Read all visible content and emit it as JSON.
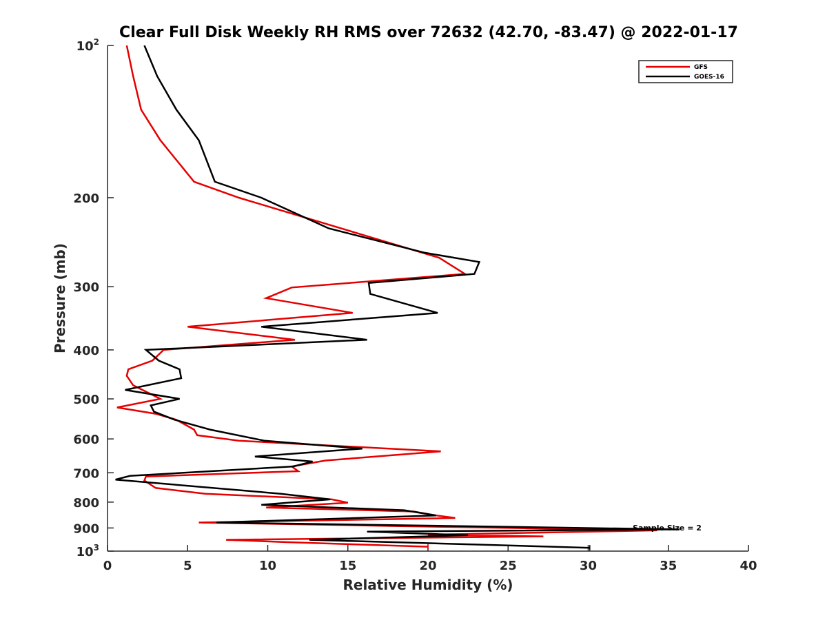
{
  "chart_data": {
    "type": "line",
    "title": "Clear Full Disk Weekly RH RMS over 72632 (42.70, -83.47) @ 2022-01-17",
    "xlabel": "Relative Humidity (%)",
    "ylabel": "Pressure (mb)",
    "xlim": [
      0,
      40
    ],
    "ylim": [
      100,
      1000
    ],
    "y_scale": "log",
    "y_reversed": true,
    "x_ticks": [
      "0",
      "5",
      "10",
      "15",
      "20",
      "25",
      "30",
      "35",
      "40"
    ],
    "y_ticks": [
      {
        "value": 100,
        "base": "10",
        "exp": "2"
      },
      {
        "value": 200,
        "label": "200"
      },
      {
        "value": 300,
        "label": "300"
      },
      {
        "value": 400,
        "label": "400"
      },
      {
        "value": 500,
        "label": "500"
      },
      {
        "value": 600,
        "label": "600"
      },
      {
        "value": 700,
        "label": "700"
      },
      {
        "value": 800,
        "label": "800"
      },
      {
        "value": 900,
        "label": "900"
      },
      {
        "value": 1000,
        "base": "10",
        "exp": "3"
      }
    ],
    "legend_position": "top-right",
    "grid": false,
    "annotation": "Sample Size = 2",
    "series": [
      {
        "name": "GFS",
        "color": "#e60000",
        "points": [
          [
            1.2,
            100
          ],
          [
            1.6,
            115
          ],
          [
            2.1,
            134
          ],
          [
            3.3,
            154
          ],
          [
            5.4,
            186
          ],
          [
            8.2,
            200
          ],
          [
            20.7,
            263
          ],
          [
            22.3,
            283
          ],
          [
            11.5,
            301
          ],
          [
            9.9,
            316
          ],
          [
            15.3,
            338
          ],
          [
            5.0,
            360
          ],
          [
            11.7,
            382
          ],
          [
            3.5,
            400
          ],
          [
            2.8,
            420
          ],
          [
            1.3,
            437
          ],
          [
            1.2,
            450
          ],
          [
            1.6,
            470
          ],
          [
            3.3,
            500
          ],
          [
            0.6,
            520
          ],
          [
            3.0,
            535
          ],
          [
            4.3,
            550
          ],
          [
            5.4,
            575
          ],
          [
            5.6,
            590
          ],
          [
            8.2,
            605
          ],
          [
            20.8,
            635
          ],
          [
            13.6,
            662
          ],
          [
            11.5,
            680
          ],
          [
            11.9,
            695
          ],
          [
            2.4,
            712
          ],
          [
            2.3,
            725
          ],
          [
            3.0,
            750
          ],
          [
            6.1,
            770
          ],
          [
            14.0,
            790
          ],
          [
            15.0,
            802
          ],
          [
            9.9,
            820
          ],
          [
            19.1,
            835
          ],
          [
            20.5,
            850
          ],
          [
            21.7,
            860
          ],
          [
            5.7,
            878
          ],
          [
            18.0,
            892
          ],
          [
            34.3,
            910
          ],
          [
            20.0,
            928
          ],
          [
            27.2,
            935
          ],
          [
            7.4,
            950
          ],
          [
            11.2,
            960
          ],
          [
            20.0,
            980
          ]
        ]
      },
      {
        "name": "GOES-16",
        "color": "#000000",
        "points": [
          [
            2.3,
            100
          ],
          [
            3.1,
            115
          ],
          [
            4.3,
            134
          ],
          [
            5.7,
            154
          ],
          [
            6.7,
            186
          ],
          [
            9.6,
            200
          ],
          [
            13.8,
            230
          ],
          [
            19.8,
            257
          ],
          [
            23.2,
            268
          ],
          [
            22.9,
            283
          ],
          [
            16.3,
            295
          ],
          [
            16.4,
            310
          ],
          [
            20.6,
            338
          ],
          [
            9.6,
            360
          ],
          [
            16.2,
            382
          ],
          [
            2.4,
            400
          ],
          [
            3.2,
            420
          ],
          [
            4.5,
            437
          ],
          [
            4.6,
            455
          ],
          [
            1.1,
            480
          ],
          [
            4.5,
            500
          ],
          [
            2.7,
            515
          ],
          [
            2.9,
            530
          ],
          [
            4.2,
            550
          ],
          [
            6.4,
            575
          ],
          [
            9.8,
            605
          ],
          [
            15.9,
            627
          ],
          [
            9.2,
            650
          ],
          [
            12.8,
            665
          ],
          [
            11.6,
            680
          ],
          [
            1.4,
            710
          ],
          [
            0.5,
            722
          ],
          [
            10.8,
            770
          ],
          [
            13.9,
            790
          ],
          [
            9.6,
            810
          ],
          [
            18.5,
            830
          ],
          [
            20.5,
            850
          ],
          [
            6.8,
            878
          ],
          [
            35.7,
            906
          ],
          [
            16.2,
            915
          ],
          [
            22.5,
            930
          ],
          [
            12.6,
            950
          ],
          [
            30.1,
            985
          ]
        ]
      }
    ]
  }
}
